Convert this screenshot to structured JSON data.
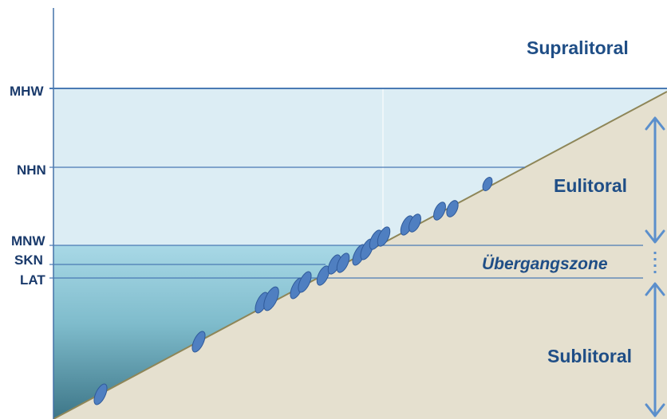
{
  "levels": {
    "mhw": "MHW",
    "nhn": "NHN",
    "mnw": "MNW",
    "skn": "SKN",
    "lat": "LAT"
  },
  "zones": {
    "supralitoral": "Supralitoral",
    "eulitoral": "Eulitoral",
    "uebergangszone": "Übergangszone",
    "sublitoral": "Sublitoral"
  },
  "colors": {
    "sea_light": "#dcedf4",
    "sea_mid": "#9fd0df",
    "sea_deep": "#3f7e90",
    "shore": "#e5e0cf",
    "shore_line": "#8e8658",
    "level_line": "#4472a8",
    "arrow": "#5b8fcc",
    "organism": "#4f7fc1"
  }
}
